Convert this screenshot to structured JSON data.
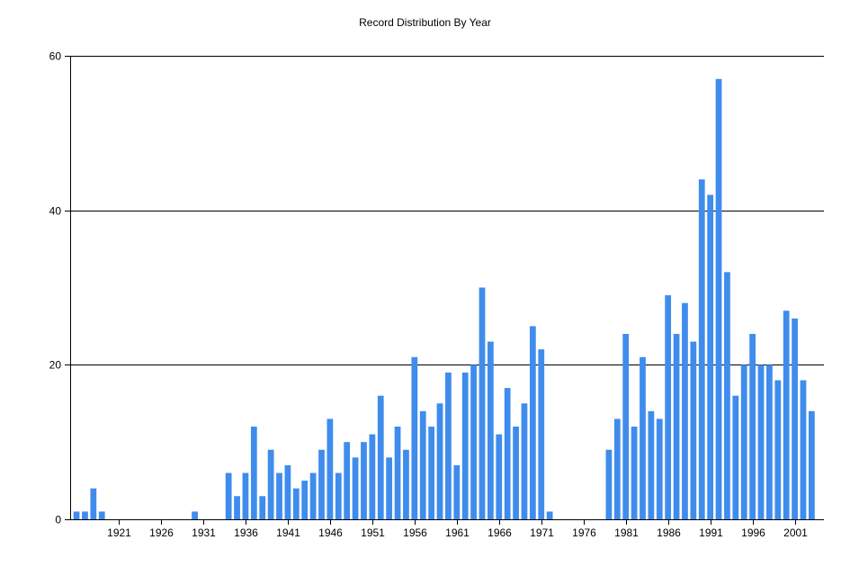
{
  "chart_data": {
    "type": "bar",
    "title": "Record Distribution By Year",
    "xlabel": "",
    "ylabel": "",
    "ylim": [
      0,
      60
    ],
    "yticks": [
      0,
      20,
      40,
      60
    ],
    "xticks": [
      1921,
      1926,
      1931,
      1936,
      1941,
      1946,
      1951,
      1956,
      1961,
      1966,
      1971,
      1976,
      1981,
      1986,
      1991,
      1996,
      2001
    ],
    "grid": "horizontal",
    "bar_color": "#3f8ced",
    "x_start": 1916,
    "x_end": 2004,
    "values": [
      1,
      1,
      4,
      1,
      0,
      0,
      0,
      0,
      0,
      0,
      0,
      0,
      0,
      0,
      1,
      0,
      0,
      0,
      6,
      3,
      6,
      12,
      3,
      9,
      6,
      7,
      4,
      5,
      6,
      9,
      13,
      6,
      10,
      8,
      10,
      11,
      16,
      8,
      12,
      9,
      21,
      14,
      12,
      15,
      19,
      7,
      19,
      20,
      30,
      23,
      11,
      17,
      12,
      15,
      25,
      22,
      1,
      0,
      0,
      0,
      0,
      0,
      0,
      9,
      13,
      24,
      12,
      21,
      14,
      13,
      29,
      24,
      28,
      23,
      44,
      42,
      57,
      32,
      16,
      20,
      24,
      20,
      20,
      18,
      27,
      26,
      18,
      14
    ]
  }
}
